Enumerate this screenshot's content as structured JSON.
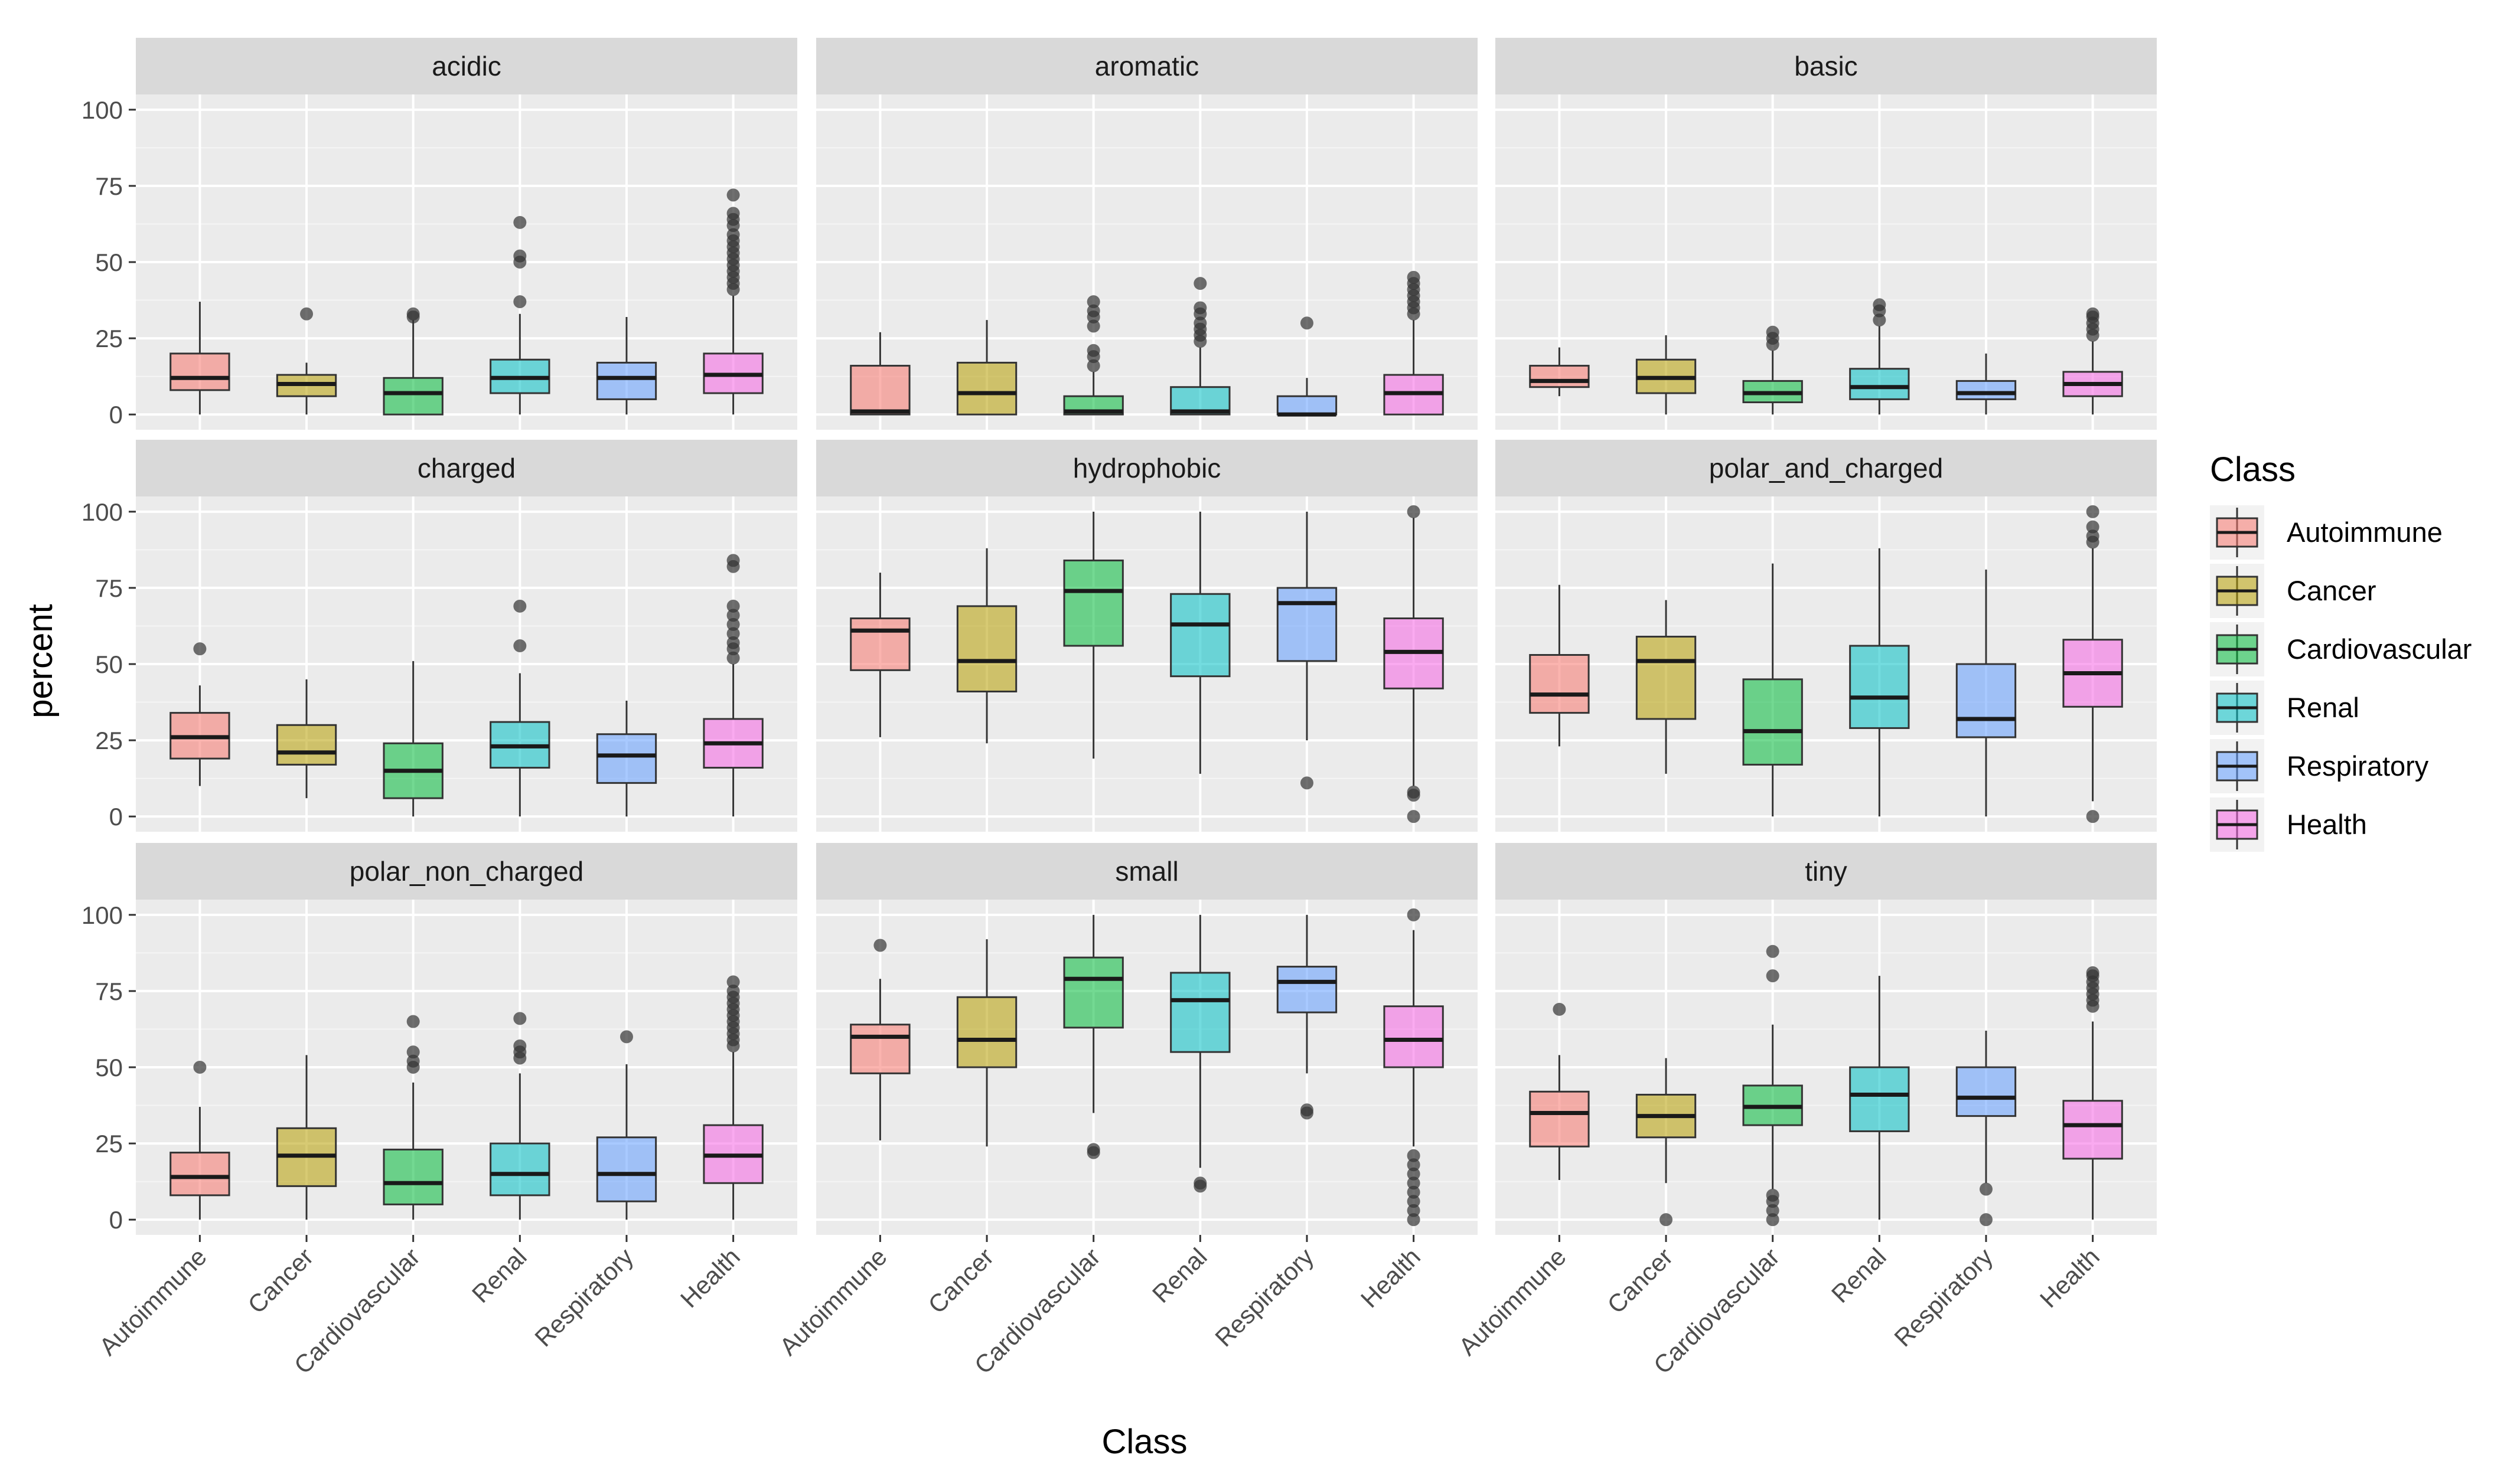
{
  "chart_data": {
    "type": "boxplot",
    "xlabel": "Class",
    "ylabel": "percent",
    "ylim": [
      0,
      100
    ],
    "yticks": [
      0,
      25,
      50,
      75,
      100
    ],
    "categories": [
      "Autoimmune",
      "Cancer",
      "Cardiovascular",
      "Renal",
      "Respiratory",
      "Health"
    ],
    "legend": {
      "title": "Class",
      "position": "right",
      "entries": [
        "Autoimmune",
        "Cancer",
        "Cardiovascular",
        "Renal",
        "Respiratory",
        "Health"
      ]
    },
    "colors": {
      "Autoimmune": "#F8766D",
      "Cancer": "#B79F00",
      "Cardiovascular": "#00BA38",
      "Renal": "#00BFC4",
      "Respiratory": "#619CFF",
      "Health": "#F564E3"
    },
    "panels": [
      {
        "title": "acidic",
        "boxes": [
          {
            "class": "Autoimmune",
            "min": 0,
            "q1": 8,
            "median": 12,
            "q3": 20,
            "max": 37,
            "outliers": []
          },
          {
            "class": "Cancer",
            "min": 0,
            "q1": 6,
            "median": 10,
            "q3": 13,
            "max": 17,
            "outliers": [
              33
            ]
          },
          {
            "class": "Cardiovascular",
            "min": 0,
            "q1": 0,
            "median": 7,
            "q3": 12,
            "max": 31,
            "outliers": [
              32,
              33
            ]
          },
          {
            "class": "Renal",
            "min": 0,
            "q1": 7,
            "median": 12,
            "q3": 18,
            "max": 33,
            "outliers": [
              37,
              50,
              52,
              63
            ]
          },
          {
            "class": "Respiratory",
            "min": 0,
            "q1": 5,
            "median": 12,
            "q3": 17,
            "max": 32,
            "outliers": []
          },
          {
            "class": "Health",
            "min": 0,
            "q1": 7,
            "median": 13,
            "q3": 20,
            "max": 39,
            "outliers": [
              41,
              43,
              45,
              47,
              49,
              51,
              53,
              55,
              57,
              59,
              62,
              64,
              66,
              72
            ]
          }
        ]
      },
      {
        "title": "aromatic",
        "boxes": [
          {
            "class": "Autoimmune",
            "min": 0,
            "q1": 0,
            "median": 1,
            "q3": 16,
            "max": 27,
            "outliers": []
          },
          {
            "class": "Cancer",
            "min": 0,
            "q1": 0,
            "median": 7,
            "q3": 17,
            "max": 31,
            "outliers": []
          },
          {
            "class": "Cardiovascular",
            "min": 0,
            "q1": 0,
            "median": 1,
            "q3": 6,
            "max": 14,
            "outliers": [
              16,
              19,
              21,
              29,
              32,
              34,
              37
            ]
          },
          {
            "class": "Renal",
            "min": 0,
            "q1": 0,
            "median": 1,
            "q3": 9,
            "max": 22,
            "outliers": [
              24,
              26,
              28,
              30,
              33,
              35,
              43
            ]
          },
          {
            "class": "Respiratory",
            "min": 0,
            "q1": 0,
            "median": 0,
            "q3": 6,
            "max": 12,
            "outliers": [
              30
            ]
          },
          {
            "class": "Health",
            "min": 0,
            "q1": 0,
            "median": 7,
            "q3": 13,
            "max": 31,
            "outliers": [
              33,
              35,
              37,
              39,
              41,
              43,
              45
            ]
          }
        ]
      },
      {
        "title": "basic",
        "boxes": [
          {
            "class": "Autoimmune",
            "min": 6,
            "q1": 9,
            "median": 11,
            "q3": 16,
            "max": 22,
            "outliers": []
          },
          {
            "class": "Cancer",
            "min": 0,
            "q1": 7,
            "median": 12,
            "q3": 18,
            "max": 26,
            "outliers": []
          },
          {
            "class": "Cardiovascular",
            "min": 0,
            "q1": 4,
            "median": 7,
            "q3": 11,
            "max": 21,
            "outliers": [
              23,
              25,
              27
            ]
          },
          {
            "class": "Renal",
            "min": 0,
            "q1": 5,
            "median": 9,
            "q3": 15,
            "max": 29,
            "outliers": [
              31,
              34,
              36
            ]
          },
          {
            "class": "Respiratory",
            "min": 0,
            "q1": 5,
            "median": 7,
            "q3": 11,
            "max": 20,
            "outliers": []
          },
          {
            "class": "Health",
            "min": 0,
            "q1": 6,
            "median": 10,
            "q3": 14,
            "max": 24,
            "outliers": [
              26,
              28,
              30,
              32,
              33
            ]
          }
        ]
      },
      {
        "title": "charged",
        "boxes": [
          {
            "class": "Autoimmune",
            "min": 10,
            "q1": 19,
            "median": 26,
            "q3": 34,
            "max": 43,
            "outliers": [
              55
            ]
          },
          {
            "class": "Cancer",
            "min": 6,
            "q1": 17,
            "median": 21,
            "q3": 30,
            "max": 45,
            "outliers": []
          },
          {
            "class": "Cardiovascular",
            "min": 0,
            "q1": 6,
            "median": 15,
            "q3": 24,
            "max": 51,
            "outliers": []
          },
          {
            "class": "Renal",
            "min": 0,
            "q1": 16,
            "median": 23,
            "q3": 31,
            "max": 47,
            "outliers": [
              56,
              69
            ]
          },
          {
            "class": "Respiratory",
            "min": 0,
            "q1": 11,
            "median": 20,
            "q3": 27,
            "max": 38,
            "outliers": []
          },
          {
            "class": "Health",
            "min": 0,
            "q1": 16,
            "median": 24,
            "q3": 32,
            "max": 50,
            "outliers": [
              52,
              55,
              57,
              60,
              63,
              66,
              69,
              82,
              84
            ]
          }
        ]
      },
      {
        "title": "hydrophobic",
        "boxes": [
          {
            "class": "Autoimmune",
            "min": 26,
            "q1": 48,
            "median": 61,
            "q3": 65,
            "max": 80,
            "outliers": []
          },
          {
            "class": "Cancer",
            "min": 24,
            "q1": 41,
            "median": 51,
            "q3": 69,
            "max": 88,
            "outliers": []
          },
          {
            "class": "Cardiovascular",
            "min": 19,
            "q1": 56,
            "median": 74,
            "q3": 84,
            "max": 100,
            "outliers": []
          },
          {
            "class": "Renal",
            "min": 14,
            "q1": 46,
            "median": 63,
            "q3": 73,
            "max": 100,
            "outliers": []
          },
          {
            "class": "Respiratory",
            "min": 25,
            "q1": 51,
            "median": 70,
            "q3": 75,
            "max": 100,
            "outliers": [
              11
            ]
          },
          {
            "class": "Health",
            "min": 10,
            "q1": 42,
            "median": 54,
            "q3": 65,
            "max": 98,
            "outliers": [
              0,
              7,
              8,
              100
            ]
          }
        ]
      },
      {
        "title": "polar_and_charged",
        "boxes": [
          {
            "class": "Autoimmune",
            "min": 23,
            "q1": 34,
            "median": 40,
            "q3": 53,
            "max": 76,
            "outliers": []
          },
          {
            "class": "Cancer",
            "min": 14,
            "q1": 32,
            "median": 51,
            "q3": 59,
            "max": 71,
            "outliers": []
          },
          {
            "class": "Cardiovascular",
            "min": 0,
            "q1": 17,
            "median": 28,
            "q3": 45,
            "max": 83,
            "outliers": []
          },
          {
            "class": "Renal",
            "min": 0,
            "q1": 29,
            "median": 39,
            "q3": 56,
            "max": 88,
            "outliers": []
          },
          {
            "class": "Respiratory",
            "min": 0,
            "q1": 26,
            "median": 32,
            "q3": 50,
            "max": 81,
            "outliers": []
          },
          {
            "class": "Health",
            "min": 5,
            "q1": 36,
            "median": 47,
            "q3": 58,
            "max": 88,
            "outliers": [
              0,
              90,
              92,
              95,
              100
            ]
          }
        ]
      },
      {
        "title": "polar_non_charged",
        "boxes": [
          {
            "class": "Autoimmune",
            "min": 0,
            "q1": 8,
            "median": 14,
            "q3": 22,
            "max": 37,
            "outliers": [
              50
            ]
          },
          {
            "class": "Cancer",
            "min": 0,
            "q1": 11,
            "median": 21,
            "q3": 30,
            "max": 54,
            "outliers": []
          },
          {
            "class": "Cardiovascular",
            "min": 0,
            "q1": 5,
            "median": 12,
            "q3": 23,
            "max": 45,
            "outliers": [
              50,
              52,
              55,
              65
            ]
          },
          {
            "class": "Renal",
            "min": 0,
            "q1": 8,
            "median": 15,
            "q3": 25,
            "max": 48,
            "outliers": [
              53,
              55,
              57,
              66
            ]
          },
          {
            "class": "Respiratory",
            "min": 0,
            "q1": 6,
            "median": 15,
            "q3": 27,
            "max": 51,
            "outliers": [
              60
            ]
          },
          {
            "class": "Health",
            "min": 0,
            "q1": 12,
            "median": 21,
            "q3": 31,
            "max": 55,
            "outliers": [
              57,
              59,
              61,
              63,
              65,
              67,
              69,
              71,
              73,
              75,
              78
            ]
          }
        ]
      },
      {
        "title": "small",
        "boxes": [
          {
            "class": "Autoimmune",
            "min": 26,
            "q1": 48,
            "median": 60,
            "q3": 64,
            "max": 79,
            "outliers": [
              90
            ]
          },
          {
            "class": "Cancer",
            "min": 24,
            "q1": 50,
            "median": 59,
            "q3": 73,
            "max": 92,
            "outliers": []
          },
          {
            "class": "Cardiovascular",
            "min": 35,
            "q1": 63,
            "median": 79,
            "q3": 86,
            "max": 100,
            "outliers": [
              22,
              23
            ]
          },
          {
            "class": "Renal",
            "min": 17,
            "q1": 55,
            "median": 72,
            "q3": 81,
            "max": 100,
            "outliers": [
              11,
              12
            ]
          },
          {
            "class": "Respiratory",
            "min": 48,
            "q1": 68,
            "median": 78,
            "q3": 83,
            "max": 100,
            "outliers": [
              35,
              36
            ]
          },
          {
            "class": "Health",
            "min": 24,
            "q1": 50,
            "median": 59,
            "q3": 70,
            "max": 95,
            "outliers": [
              0,
              3,
              6,
              9,
              12,
              15,
              18,
              21,
              100
            ]
          }
        ]
      },
      {
        "title": "tiny",
        "boxes": [
          {
            "class": "Autoimmune",
            "min": 13,
            "q1": 24,
            "median": 35,
            "q3": 42,
            "max": 54,
            "outliers": [
              69
            ]
          },
          {
            "class": "Cancer",
            "min": 12,
            "q1": 27,
            "median": 34,
            "q3": 41,
            "max": 53,
            "outliers": [
              0
            ]
          },
          {
            "class": "Cardiovascular",
            "min": 10,
            "q1": 31,
            "median": 37,
            "q3": 44,
            "max": 64,
            "outliers": [
              0,
              3,
              6,
              8,
              80,
              88
            ]
          },
          {
            "class": "Renal",
            "min": 0,
            "q1": 29,
            "median": 41,
            "q3": 50,
            "max": 80,
            "outliers": []
          },
          {
            "class": "Respiratory",
            "min": 12,
            "q1": 34,
            "median": 40,
            "q3": 50,
            "max": 62,
            "outliers": [
              0,
              10
            ]
          },
          {
            "class": "Health",
            "min": 0,
            "q1": 20,
            "median": 31,
            "q3": 39,
            "max": 65,
            "outliers": [
              70,
              72,
              74,
              76,
              78,
              80,
              81
            ]
          }
        ]
      }
    ]
  }
}
